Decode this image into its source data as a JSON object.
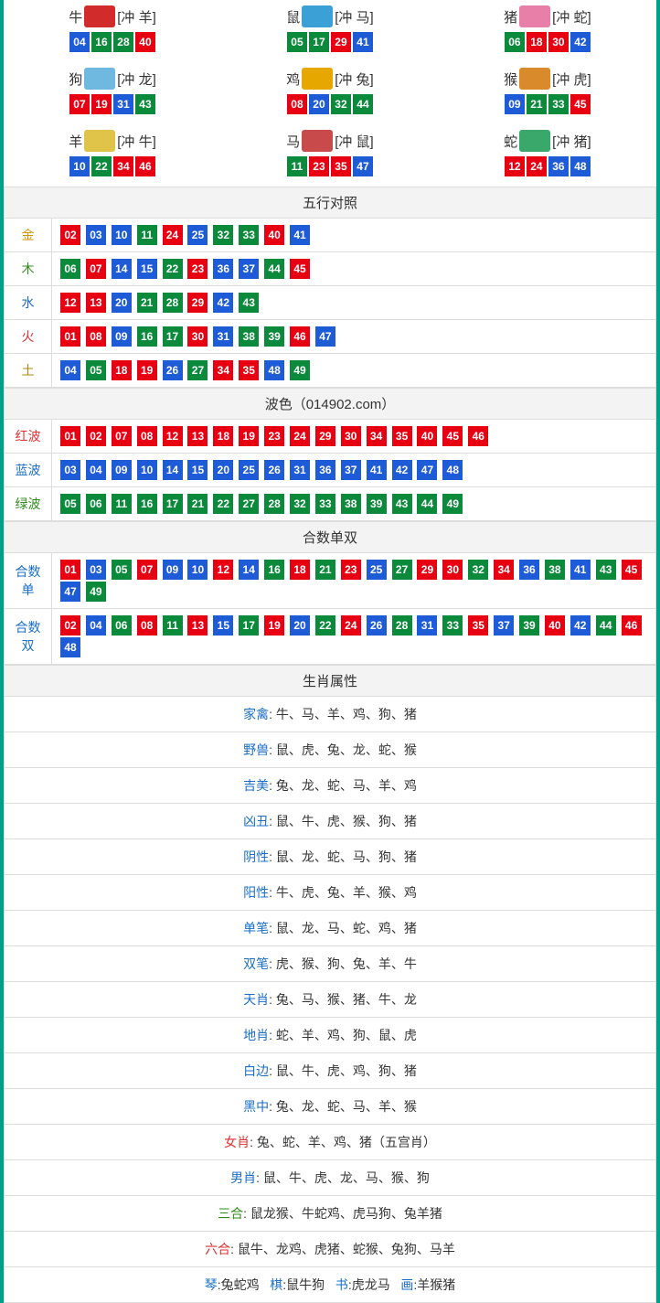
{
  "colors": {
    "red": "#e60012",
    "blue": "#1e5bd6",
    "green": "#0a8a3a",
    "border_outer": "#00a088",
    "cell_border": "#dddddd",
    "header_bg": "#f3f3f3"
  },
  "zodiac_icon_colors": {
    "牛": "#d12b2b",
    "鼠": "#3aa0d6",
    "猪": "#e77fa8",
    "狗": "#6fb8e0",
    "鸡": "#e6a800",
    "猴": "#d98a2b",
    "羊": "#e0c44a",
    "马": "#c94a4a",
    "蛇": "#3aa86b"
  },
  "zodiacs": [
    {
      "name": "牛",
      "clash": "冲 羊",
      "nums": [
        {
          "n": "04",
          "c": "blue"
        },
        {
          "n": "16",
          "c": "green"
        },
        {
          "n": "28",
          "c": "green"
        },
        {
          "n": "40",
          "c": "red"
        }
      ]
    },
    {
      "name": "鼠",
      "clash": "冲 马",
      "nums": [
        {
          "n": "05",
          "c": "green"
        },
        {
          "n": "17",
          "c": "green"
        },
        {
          "n": "29",
          "c": "red"
        },
        {
          "n": "41",
          "c": "blue"
        }
      ]
    },
    {
      "name": "猪",
      "clash": "冲 蛇",
      "nums": [
        {
          "n": "06",
          "c": "green"
        },
        {
          "n": "18",
          "c": "red"
        },
        {
          "n": "30",
          "c": "red"
        },
        {
          "n": "42",
          "c": "blue"
        }
      ]
    },
    {
      "name": "狗",
      "clash": "冲 龙",
      "nums": [
        {
          "n": "07",
          "c": "red"
        },
        {
          "n": "19",
          "c": "red"
        },
        {
          "n": "31",
          "c": "blue"
        },
        {
          "n": "43",
          "c": "green"
        }
      ]
    },
    {
      "name": "鸡",
      "clash": "冲 兔",
      "nums": [
        {
          "n": "08",
          "c": "red"
        },
        {
          "n": "20",
          "c": "blue"
        },
        {
          "n": "32",
          "c": "green"
        },
        {
          "n": "44",
          "c": "green"
        }
      ]
    },
    {
      "name": "猴",
      "clash": "冲 虎",
      "nums": [
        {
          "n": "09",
          "c": "blue"
        },
        {
          "n": "21",
          "c": "green"
        },
        {
          "n": "33",
          "c": "green"
        },
        {
          "n": "45",
          "c": "red"
        }
      ]
    },
    {
      "name": "羊",
      "clash": "冲 牛",
      "nums": [
        {
          "n": "10",
          "c": "blue"
        },
        {
          "n": "22",
          "c": "green"
        },
        {
          "n": "34",
          "c": "red"
        },
        {
          "n": "46",
          "c": "red"
        }
      ]
    },
    {
      "name": "马",
      "clash": "冲 鼠",
      "nums": [
        {
          "n": "11",
          "c": "green"
        },
        {
          "n": "23",
          "c": "red"
        },
        {
          "n": "35",
          "c": "red"
        },
        {
          "n": "47",
          "c": "blue"
        }
      ]
    },
    {
      "name": "蛇",
      "clash": "冲 猪",
      "nums": [
        {
          "n": "12",
          "c": "red"
        },
        {
          "n": "24",
          "c": "red"
        },
        {
          "n": "36",
          "c": "blue"
        },
        {
          "n": "48",
          "c": "blue"
        }
      ]
    }
  ],
  "sections": {
    "wuxing_title": "五行对照",
    "wave_title": "波色（014902.com）",
    "heshu_title": "合数单双",
    "attr_title": "生肖属性"
  },
  "wuxing": [
    {
      "label": "金",
      "cls": "lbl-gold",
      "nums": [
        {
          "n": "02",
          "c": "red"
        },
        {
          "n": "03",
          "c": "blue"
        },
        {
          "n": "10",
          "c": "blue"
        },
        {
          "n": "11",
          "c": "green"
        },
        {
          "n": "24",
          "c": "red"
        },
        {
          "n": "25",
          "c": "blue"
        },
        {
          "n": "32",
          "c": "green"
        },
        {
          "n": "33",
          "c": "green"
        },
        {
          "n": "40",
          "c": "red"
        },
        {
          "n": "41",
          "c": "blue"
        }
      ]
    },
    {
      "label": "木",
      "cls": "lbl-wood",
      "nums": [
        {
          "n": "06",
          "c": "green"
        },
        {
          "n": "07",
          "c": "red"
        },
        {
          "n": "14",
          "c": "blue"
        },
        {
          "n": "15",
          "c": "blue"
        },
        {
          "n": "22",
          "c": "green"
        },
        {
          "n": "23",
          "c": "red"
        },
        {
          "n": "36",
          "c": "blue"
        },
        {
          "n": "37",
          "c": "blue"
        },
        {
          "n": "44",
          "c": "green"
        },
        {
          "n": "45",
          "c": "red"
        }
      ]
    },
    {
      "label": "水",
      "cls": "lbl-water",
      "nums": [
        {
          "n": "12",
          "c": "red"
        },
        {
          "n": "13",
          "c": "red"
        },
        {
          "n": "20",
          "c": "blue"
        },
        {
          "n": "21",
          "c": "green"
        },
        {
          "n": "28",
          "c": "green"
        },
        {
          "n": "29",
          "c": "red"
        },
        {
          "n": "42",
          "c": "blue"
        },
        {
          "n": "43",
          "c": "green"
        }
      ]
    },
    {
      "label": "火",
      "cls": "lbl-fire",
      "nums": [
        {
          "n": "01",
          "c": "red"
        },
        {
          "n": "08",
          "c": "red"
        },
        {
          "n": "09",
          "c": "blue"
        },
        {
          "n": "16",
          "c": "green"
        },
        {
          "n": "17",
          "c": "green"
        },
        {
          "n": "30",
          "c": "red"
        },
        {
          "n": "31",
          "c": "blue"
        },
        {
          "n": "38",
          "c": "green"
        },
        {
          "n": "39",
          "c": "green"
        },
        {
          "n": "46",
          "c": "red"
        },
        {
          "n": "47",
          "c": "blue"
        }
      ]
    },
    {
      "label": "土",
      "cls": "lbl-earth",
      "nums": [
        {
          "n": "04",
          "c": "blue"
        },
        {
          "n": "05",
          "c": "green"
        },
        {
          "n": "18",
          "c": "red"
        },
        {
          "n": "19",
          "c": "red"
        },
        {
          "n": "26",
          "c": "blue"
        },
        {
          "n": "27",
          "c": "green"
        },
        {
          "n": "34",
          "c": "red"
        },
        {
          "n": "35",
          "c": "red"
        },
        {
          "n": "48",
          "c": "blue"
        },
        {
          "n": "49",
          "c": "green"
        }
      ]
    }
  ],
  "waves": [
    {
      "label": "红波",
      "cls": "lbl-red",
      "nums": [
        {
          "n": "01",
          "c": "red"
        },
        {
          "n": "02",
          "c": "red"
        },
        {
          "n": "07",
          "c": "red"
        },
        {
          "n": "08",
          "c": "red"
        },
        {
          "n": "12",
          "c": "red"
        },
        {
          "n": "13",
          "c": "red"
        },
        {
          "n": "18",
          "c": "red"
        },
        {
          "n": "19",
          "c": "red"
        },
        {
          "n": "23",
          "c": "red"
        },
        {
          "n": "24",
          "c": "red"
        },
        {
          "n": "29",
          "c": "red"
        },
        {
          "n": "30",
          "c": "red"
        },
        {
          "n": "34",
          "c": "red"
        },
        {
          "n": "35",
          "c": "red"
        },
        {
          "n": "40",
          "c": "red"
        },
        {
          "n": "45",
          "c": "red"
        },
        {
          "n": "46",
          "c": "red"
        }
      ]
    },
    {
      "label": "蓝波",
      "cls": "lbl-blue",
      "nums": [
        {
          "n": "03",
          "c": "blue"
        },
        {
          "n": "04",
          "c": "blue"
        },
        {
          "n": "09",
          "c": "blue"
        },
        {
          "n": "10",
          "c": "blue"
        },
        {
          "n": "14",
          "c": "blue"
        },
        {
          "n": "15",
          "c": "blue"
        },
        {
          "n": "20",
          "c": "blue"
        },
        {
          "n": "25",
          "c": "blue"
        },
        {
          "n": "26",
          "c": "blue"
        },
        {
          "n": "31",
          "c": "blue"
        },
        {
          "n": "36",
          "c": "blue"
        },
        {
          "n": "37",
          "c": "blue"
        },
        {
          "n": "41",
          "c": "blue"
        },
        {
          "n": "42",
          "c": "blue"
        },
        {
          "n": "47",
          "c": "blue"
        },
        {
          "n": "48",
          "c": "blue"
        }
      ]
    },
    {
      "label": "绿波",
      "cls": "lbl-green",
      "nums": [
        {
          "n": "05",
          "c": "green"
        },
        {
          "n": "06",
          "c": "green"
        },
        {
          "n": "11",
          "c": "green"
        },
        {
          "n": "16",
          "c": "green"
        },
        {
          "n": "17",
          "c": "green"
        },
        {
          "n": "21",
          "c": "green"
        },
        {
          "n": "22",
          "c": "green"
        },
        {
          "n": "27",
          "c": "green"
        },
        {
          "n": "28",
          "c": "green"
        },
        {
          "n": "32",
          "c": "green"
        },
        {
          "n": "33",
          "c": "green"
        },
        {
          "n": "38",
          "c": "green"
        },
        {
          "n": "39",
          "c": "green"
        },
        {
          "n": "43",
          "c": "green"
        },
        {
          "n": "44",
          "c": "green"
        },
        {
          "n": "49",
          "c": "green"
        }
      ]
    }
  ],
  "heshu": [
    {
      "label": "合数单",
      "nums": [
        {
          "n": "01",
          "c": "red"
        },
        {
          "n": "03",
          "c": "blue"
        },
        {
          "n": "05",
          "c": "green"
        },
        {
          "n": "07",
          "c": "red"
        },
        {
          "n": "09",
          "c": "blue"
        },
        {
          "n": "10",
          "c": "blue"
        },
        {
          "n": "12",
          "c": "red"
        },
        {
          "n": "14",
          "c": "blue"
        },
        {
          "n": "16",
          "c": "green"
        },
        {
          "n": "18",
          "c": "red"
        },
        {
          "n": "21",
          "c": "green"
        },
        {
          "n": "23",
          "c": "red"
        },
        {
          "n": "25",
          "c": "blue"
        },
        {
          "n": "27",
          "c": "green"
        },
        {
          "n": "29",
          "c": "red"
        },
        {
          "n": "30",
          "c": "red"
        },
        {
          "n": "32",
          "c": "green"
        },
        {
          "n": "34",
          "c": "red"
        },
        {
          "n": "36",
          "c": "blue"
        },
        {
          "n": "38",
          "c": "green"
        },
        {
          "n": "41",
          "c": "blue"
        },
        {
          "n": "43",
          "c": "green"
        },
        {
          "n": "45",
          "c": "red"
        },
        {
          "n": "47",
          "c": "blue"
        },
        {
          "n": "49",
          "c": "green"
        }
      ]
    },
    {
      "label": "合数双",
      "nums": [
        {
          "n": "02",
          "c": "red"
        },
        {
          "n": "04",
          "c": "blue"
        },
        {
          "n": "06",
          "c": "green"
        },
        {
          "n": "08",
          "c": "red"
        },
        {
          "n": "11",
          "c": "green"
        },
        {
          "n": "13",
          "c": "red"
        },
        {
          "n": "15",
          "c": "blue"
        },
        {
          "n": "17",
          "c": "green"
        },
        {
          "n": "19",
          "c": "red"
        },
        {
          "n": "20",
          "c": "blue"
        },
        {
          "n": "22",
          "c": "green"
        },
        {
          "n": "24",
          "c": "red"
        },
        {
          "n": "26",
          "c": "blue"
        },
        {
          "n": "28",
          "c": "green"
        },
        {
          "n": "31",
          "c": "blue"
        },
        {
          "n": "33",
          "c": "green"
        },
        {
          "n": "35",
          "c": "red"
        },
        {
          "n": "37",
          "c": "blue"
        },
        {
          "n": "39",
          "c": "green"
        },
        {
          "n": "40",
          "c": "red"
        },
        {
          "n": "42",
          "c": "blue"
        },
        {
          "n": "44",
          "c": "green"
        },
        {
          "n": "46",
          "c": "red"
        },
        {
          "n": "48",
          "c": "blue"
        }
      ]
    }
  ],
  "attrs": [
    {
      "name": "家禽",
      "cls": "",
      "text": "牛、马、羊、鸡、狗、猪"
    },
    {
      "name": "野兽",
      "cls": "",
      "text": "鼠、虎、兔、龙、蛇、猴"
    },
    {
      "name": "吉美",
      "cls": "",
      "text": "兔、龙、蛇、马、羊、鸡"
    },
    {
      "name": "凶丑",
      "cls": "",
      "text": "鼠、牛、虎、猴、狗、猪"
    },
    {
      "name": "阴性",
      "cls": "",
      "text": "鼠、龙、蛇、马、狗、猪"
    },
    {
      "name": "阳性",
      "cls": "",
      "text": "牛、虎、兔、羊、猴、鸡"
    },
    {
      "name": "单笔",
      "cls": "",
      "text": "鼠、龙、马、蛇、鸡、猪"
    },
    {
      "name": "双笔",
      "cls": "",
      "text": "虎、猴、狗、兔、羊、牛"
    },
    {
      "name": "天肖",
      "cls": "",
      "text": "兔、马、猴、猪、牛、龙"
    },
    {
      "name": "地肖",
      "cls": "",
      "text": "蛇、羊、鸡、狗、鼠、虎"
    },
    {
      "name": "白边",
      "cls": "",
      "text": "鼠、牛、虎、鸡、狗、猪"
    },
    {
      "name": "黑中",
      "cls": "",
      "text": "兔、龙、蛇、马、羊、猴"
    },
    {
      "name": "女肖",
      "cls": "red",
      "text": "兔、蛇、羊、鸡、猪（五宫肖）"
    },
    {
      "name": "男肖",
      "cls": "",
      "text": "鼠、牛、虎、龙、马、猴、狗"
    },
    {
      "name": "三合",
      "cls": "green",
      "text": "鼠龙猴、牛蛇鸡、虎马狗、兔羊猪"
    },
    {
      "name": "六合",
      "cls": "red",
      "text": "鼠牛、龙鸡、虎猪、蛇猴、兔狗、马羊"
    }
  ],
  "footer_tokens": [
    {
      "k": "琴",
      "v": "兔蛇鸡"
    },
    {
      "k": "棋",
      "v": "鼠牛狗"
    },
    {
      "k": "书",
      "v": "虎龙马"
    },
    {
      "k": "画",
      "v": "羊猴猪"
    }
  ]
}
